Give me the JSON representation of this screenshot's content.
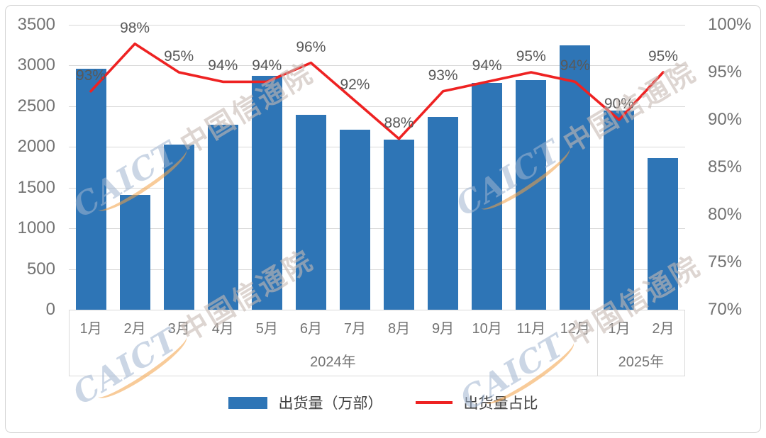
{
  "chart_data": {
    "type": "bar+line",
    "categories": [
      "1月",
      "2月",
      "3月",
      "4月",
      "5月",
      "6月",
      "7月",
      "8月",
      "9月",
      "10月",
      "11月",
      "12月",
      "1月",
      "2月"
    ],
    "category_groups": [
      {
        "label": "2024年",
        "span": 12
      },
      {
        "label": "2025年",
        "span": 2
      }
    ],
    "series": [
      {
        "name": "出货量（万部）",
        "type": "bar",
        "color": "#2E75B6",
        "values": [
          2960,
          1410,
          2025,
          2270,
          2870,
          2395,
          2215,
          2090,
          2370,
          2790,
          2820,
          3250,
          2450,
          1860
        ]
      },
      {
        "name": "出货量占比",
        "type": "line",
        "color": "#EE2222",
        "values": [
          93,
          98,
          95,
          94,
          94,
          96,
          92,
          88,
          93,
          94,
          95,
          94,
          90,
          95
        ],
        "label_suffix": "%"
      }
    ],
    "left_axis": {
      "min": 0,
      "max": 3500,
      "step": 500,
      "ticks": [
        "0",
        "500",
        "1000",
        "1500",
        "2000",
        "2500",
        "3000",
        "3500"
      ]
    },
    "right_axis": {
      "min": 70,
      "max": 100,
      "step": 5,
      "ticks": [
        "70%",
        "75%",
        "80%",
        "85%",
        "90%",
        "95%",
        "100%"
      ]
    },
    "grid": true,
    "legend_position": "bottom",
    "title": ""
  },
  "legend": {
    "bar_label": "出货量（万部）",
    "line_label": "出货量占比"
  },
  "watermark": {
    "brand": "CAICT",
    "text": "中国信通院"
  },
  "colors": {
    "bar": "#2E75B6",
    "line": "#EE2222",
    "grid": "#D9D9D9",
    "axis_text": "#737373",
    "data_label": "#595959"
  }
}
